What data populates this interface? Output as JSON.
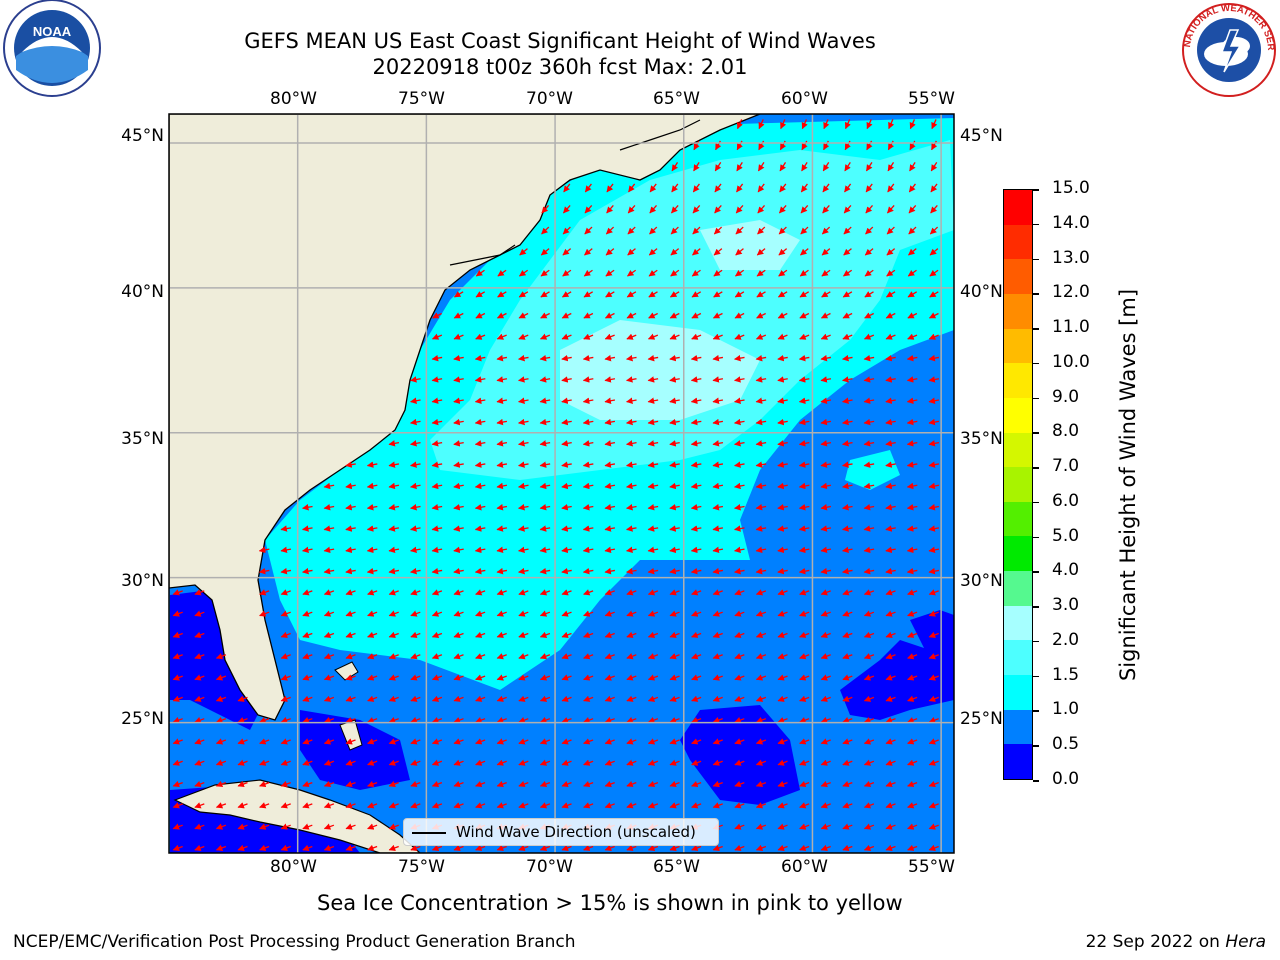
{
  "title_line1": "GEFS MEAN US East Coast Significant Height of Wind Waves",
  "title_line2": "20220918 t00z 360h fcst   Max: 2.01",
  "logos": {
    "left": "NOAA",
    "right": "NATIONAL WEATHER SERVICE"
  },
  "map": {
    "lon_ticks": [
      "80°W",
      "75°W",
      "70°W",
      "65°W",
      "60°W",
      "55°W"
    ],
    "lat_ticks": [
      "45°N",
      "40°N",
      "35°N",
      "30°N",
      "25°N"
    ],
    "extent": {
      "lon": [
        -85,
        -54.5
      ],
      "lat": [
        20.5,
        46
      ]
    },
    "projection": "PlateCarree",
    "land_color": "#efedda",
    "arrow_color": "#ff0000",
    "grid": true
  },
  "colorbar": {
    "label": "Significant Height of Wind Waves [m]",
    "ticks": [
      "0.0",
      "0.5",
      "1.0",
      "1.5",
      "2.0",
      "3.0",
      "4.0",
      "5.0",
      "6.0",
      "7.0",
      "8.0",
      "9.0",
      "10.0",
      "11.0",
      "12.0",
      "13.0",
      "14.0",
      "15.0"
    ],
    "colors": [
      "#0000ff",
      "#0080ff",
      "#00ffff",
      "#4dffff",
      "#a6ffff",
      "#55f98f",
      "#00ea00",
      "#53ef00",
      "#a8f300",
      "#d4f700",
      "#ffff00",
      "#ffe800",
      "#ffbb00",
      "#ff8c00",
      "#ff5c00",
      "#ff2c00",
      "#ff0000"
    ]
  },
  "legend": {
    "label": "Wind Wave Direction (unscaled)"
  },
  "footnote": "Sea Ice Concentration > 15% is shown in pink to yellow",
  "credit": "NCEP/EMC/Verification Post Processing Product Generation Branch",
  "run_date": {
    "prefix": "22 Sep 2022 on ",
    "host": "Hera"
  }
}
